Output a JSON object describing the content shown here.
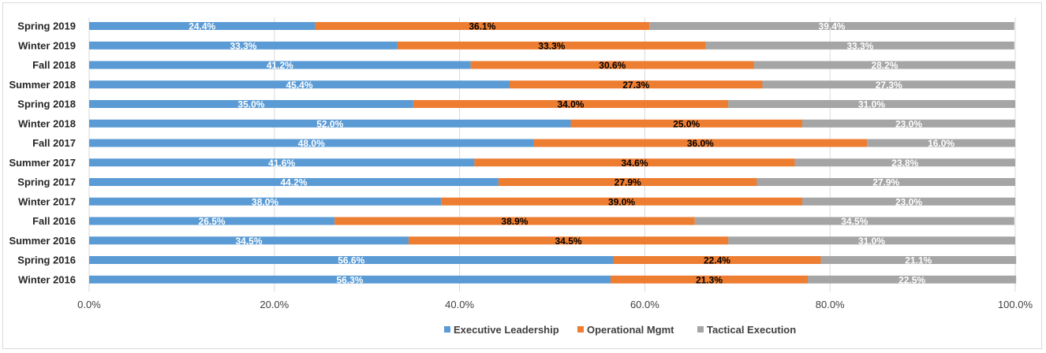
{
  "chart_data": {
    "type": "bar",
    "orientation": "horizontal",
    "stacked": "percent",
    "categories": [
      "Spring 2019",
      "Winter 2019",
      "Fall 2018",
      "Summer 2018",
      "Spring 2018",
      "Winter 2018",
      "Fall 2017",
      "Summer 2017",
      "Spring 2017",
      "Winter 2017",
      "Fall 2016",
      "Summer 2016",
      "Spring 2016",
      "Winter 2016"
    ],
    "series": [
      {
        "name": "Executive Leadership",
        "color": "#5b9bd5",
        "values": [
          24.4,
          33.3,
          41.2,
          45.4,
          35.0,
          52.0,
          48.0,
          41.6,
          44.2,
          38.0,
          26.5,
          34.5,
          56.6,
          56.3
        ],
        "labels": [
          "24.4%",
          "33.3%",
          "41.2%",
          "45.4%",
          "35.0%",
          "52.0%",
          "48.0%",
          "41.6%",
          "44.2%",
          "38.0%",
          "26.5%",
          "34.5%",
          "56.6%",
          "56.3%"
        ]
      },
      {
        "name": "Operational Mgmt",
        "color": "#ed7d31",
        "values": [
          36.1,
          33.3,
          30.6,
          27.3,
          34.0,
          25.0,
          36.0,
          34.6,
          27.9,
          39.0,
          38.9,
          34.5,
          22.4,
          21.3
        ],
        "labels": [
          "36.1%",
          "33.3%",
          "30.6%",
          "27.3%",
          "34.0%",
          "25.0%",
          "36.0%",
          "34.6%",
          "27.9%",
          "39.0%",
          "38.9%",
          "34.5%",
          "22.4%",
          "21.3%"
        ]
      },
      {
        "name": "Tactical Execution",
        "color": "#a5a5a5",
        "values": [
          39.4,
          33.3,
          28.2,
          27.3,
          31.0,
          23.0,
          16.0,
          23.8,
          27.9,
          23.0,
          34.5,
          31.0,
          21.1,
          22.5
        ],
        "labels": [
          "39.4%",
          "33.3%",
          "28.2%",
          "27.3%",
          "31.0%",
          "23.0%",
          "16.0%",
          "23.8%",
          "27.9%",
          "23.0%",
          "34.5%",
          "31.0%",
          "21.1%",
          "22.5%"
        ]
      }
    ],
    "xlim": [
      0,
      100
    ],
    "x_ticks": [
      "0.0%",
      "20.0%",
      "40.0%",
      "60.0%",
      "80.0%",
      "100.0%"
    ],
    "grid": true,
    "legend": "bottom",
    "title": "",
    "xlabel": "",
    "ylabel": ""
  }
}
